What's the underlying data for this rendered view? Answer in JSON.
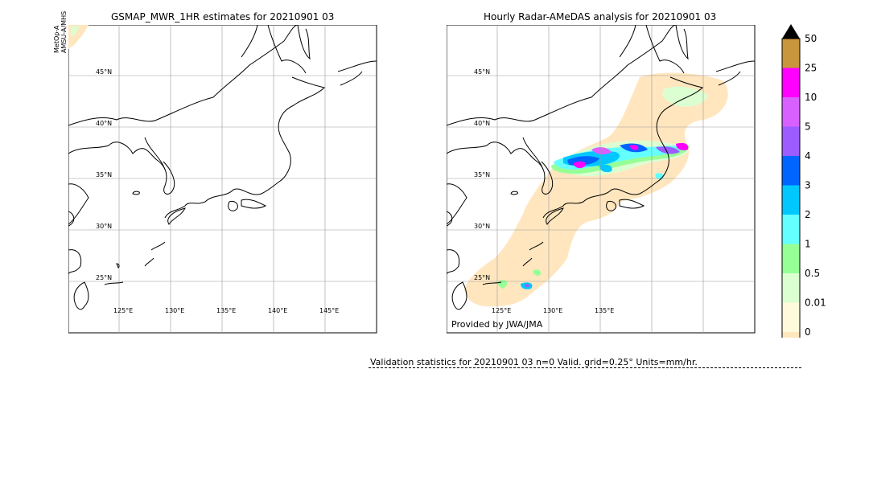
{
  "left_panel": {
    "title": "GSMAP_MWR_1HR estimates for 20210901 03",
    "satellite_lines": [
      "MetOp-A",
      "AMSU-A/MHS"
    ],
    "lat_labels": [
      "45°N",
      "40°N",
      "35°N",
      "30°N",
      "25°N"
    ],
    "lon_labels": [
      "125°E",
      "130°E",
      "135°E",
      "140°E",
      "145°E"
    ]
  },
  "right_panel": {
    "title": "Hourly Radar-AMeDAS analysis for 20210901 03",
    "lat_labels": [
      "45°N",
      "40°N",
      "35°N",
      "30°N",
      "25°N"
    ],
    "lon_labels": [
      "125°E",
      "130°E",
      "135°E"
    ],
    "credit": "Provided by JWA/JMA"
  },
  "colorbar": {
    "labels": [
      "50",
      "25",
      "10",
      "5",
      "4",
      "3",
      "2",
      "1",
      "0.5",
      "0.01",
      "0"
    ],
    "colors": [
      "#c8963c",
      "#ff00ff",
      "#d860ff",
      "#9c5cff",
      "#0064ff",
      "#00c8ff",
      "#64ffff",
      "#96ff96",
      "#dcffd2",
      "#fffadc",
      "#ffe6be"
    ],
    "extend_color": "#000000"
  },
  "validation": {
    "text": "Validation statistics for 20210901 03  n=0 Valid. grid=0.25° Units=mm/hr."
  }
}
